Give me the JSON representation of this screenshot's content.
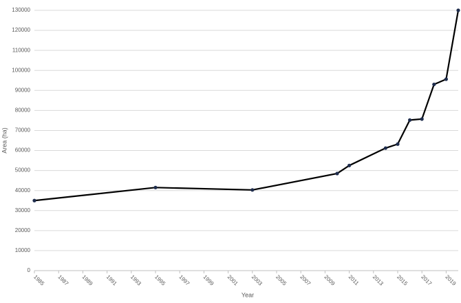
{
  "chart_data": {
    "type": "line",
    "x_label": "Year",
    "y_label": "Area (ha)",
    "x": [
      1985,
      1995,
      2003,
      2010,
      2011,
      2014,
      2015,
      2016,
      2017,
      2018,
      2019,
      2020
    ],
    "series": [
      {
        "name": "Area",
        "color": "#000000",
        "marker_color": "#1f2d4d",
        "values": [
          35000,
          41500,
          40300,
          48500,
          52500,
          61200,
          63200,
          75200,
          75700,
          93000,
          95600,
          130000
        ]
      }
    ],
    "xlim": [
      1985,
      2020
    ],
    "xticks": [
      1985,
      1987,
      1989,
      1991,
      1993,
      1995,
      1997,
      1999,
      2001,
      2003,
      2005,
      2007,
      2009,
      2011,
      2013,
      2015,
      2017,
      2019
    ],
    "ylim": [
      0,
      130000
    ],
    "yticks": [
      0,
      10000,
      20000,
      30000,
      40000,
      50000,
      60000,
      70000,
      80000,
      90000,
      100000,
      110000,
      120000,
      130000
    ],
    "grid": true
  }
}
